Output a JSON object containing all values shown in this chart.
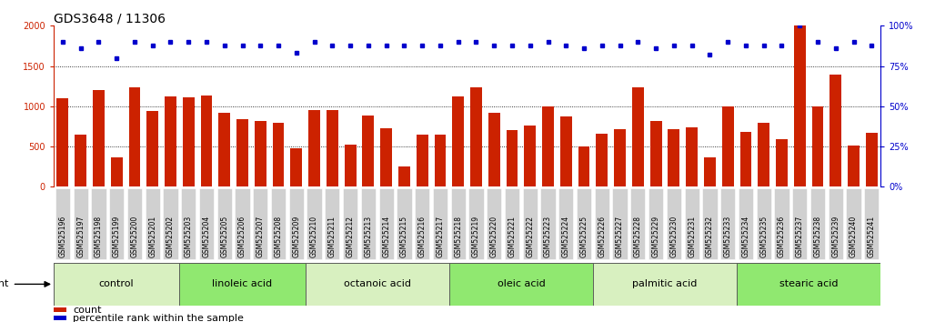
{
  "title": "GDS3648 / 11306",
  "samples": [
    "GSM525196",
    "GSM525197",
    "GSM525198",
    "GSM525199",
    "GSM525200",
    "GSM525201",
    "GSM525202",
    "GSM525203",
    "GSM525204",
    "GSM525205",
    "GSM525206",
    "GSM525207",
    "GSM525208",
    "GSM525209",
    "GSM525210",
    "GSM525211",
    "GSM525212",
    "GSM525213",
    "GSM525214",
    "GSM525215",
    "GSM525216",
    "GSM525217",
    "GSM525218",
    "GSM525219",
    "GSM525220",
    "GSM525221",
    "GSM525222",
    "GSM525223",
    "GSM525224",
    "GSM525225",
    "GSM525226",
    "GSM525227",
    "GSM525228",
    "GSM525229",
    "GSM525230",
    "GSM525231",
    "GSM525232",
    "GSM525233",
    "GSM525234",
    "GSM525235",
    "GSM525236",
    "GSM525237",
    "GSM525238",
    "GSM525239",
    "GSM525240",
    "GSM525241"
  ],
  "counts": [
    1100,
    650,
    1200,
    370,
    1240,
    940,
    1120,
    1110,
    1130,
    920,
    840,
    820,
    800,
    480,
    950,
    950,
    520,
    880,
    730,
    250,
    650,
    650,
    1120,
    1240,
    920,
    700,
    760,
    1000,
    870,
    500,
    660,
    720,
    1240,
    820,
    720,
    740,
    360,
    1000,
    680,
    790,
    590,
    2000,
    1000,
    1390,
    510,
    670
  ],
  "percentile_ranks": [
    90,
    86,
    90,
    80,
    90,
    88,
    90,
    90,
    90,
    88,
    88,
    88,
    88,
    83,
    90,
    88,
    88,
    88,
    88,
    88,
    88,
    88,
    90,
    90,
    88,
    88,
    88,
    90,
    88,
    86,
    88,
    88,
    90,
    86,
    88,
    88,
    82,
    90,
    88,
    88,
    88,
    100,
    90,
    86,
    90,
    88
  ],
  "groups": [
    {
      "label": "control",
      "start": 0,
      "end": 6,
      "color": "#d8f0c0"
    },
    {
      "label": "linoleic acid",
      "start": 7,
      "end": 13,
      "color": "#90e870"
    },
    {
      "label": "octanoic acid",
      "start": 14,
      "end": 21,
      "color": "#d8f0c0"
    },
    {
      "label": "oleic acid",
      "start": 22,
      "end": 29,
      "color": "#90e870"
    },
    {
      "label": "palmitic acid",
      "start": 30,
      "end": 37,
      "color": "#d8f0c0"
    },
    {
      "label": "stearic acid",
      "start": 38,
      "end": 45,
      "color": "#90e870"
    }
  ],
  "bar_color": "#cc2200",
  "dot_color": "#0000cc",
  "left_ylim": [
    0,
    2000
  ],
  "right_ylim": [
    0,
    100
  ],
  "left_yticks": [
    0,
    500,
    1000,
    1500,
    2000
  ],
  "right_yticks": [
    0,
    25,
    50,
    75,
    100
  ],
  "fig_bg_color": "#ffffff",
  "plot_bg_color": "#ffffff",
  "tick_label_bg": "#d0d0d0",
  "title_fontsize": 10,
  "tick_fontsize": 5.5,
  "group_fontsize": 8,
  "legend_fontsize": 8,
  "ytick_fontsize": 7
}
